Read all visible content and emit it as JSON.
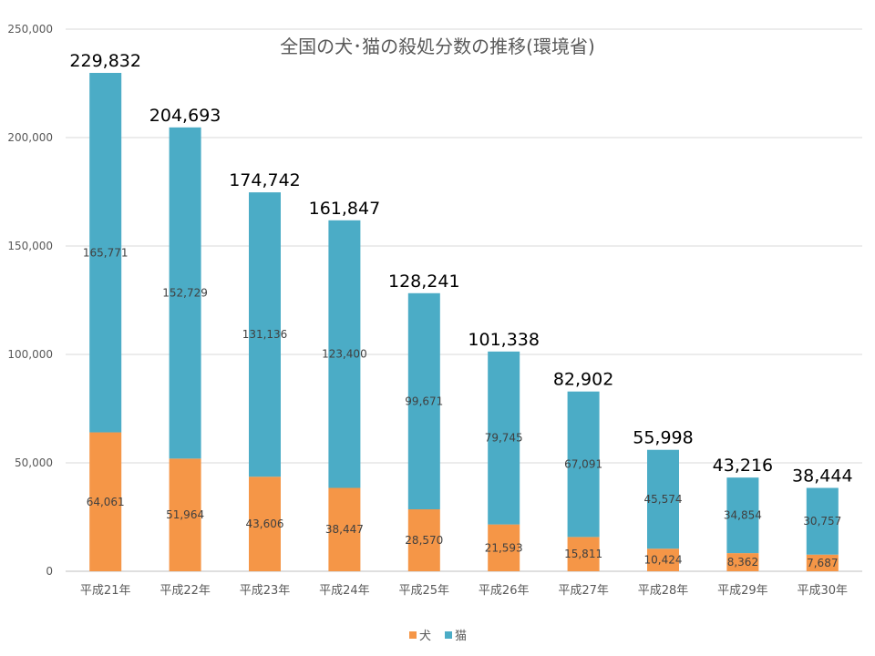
{
  "chart_data": {
    "type": "bar",
    "stacked": true,
    "title": "全国の犬･猫の殺処分数の推移(環境省)",
    "categories": [
      "平成21年",
      "平成22年",
      "平成23年",
      "平成24年",
      "平成25年",
      "平成26年",
      "平成27年",
      "平成28年",
      "平成29年",
      "平成30年"
    ],
    "series": [
      {
        "name": "犬",
        "color": "#f59647",
        "values": [
          64061,
          51964,
          43606,
          38447,
          28570,
          21593,
          15811,
          10424,
          8362,
          7687
        ],
        "labels": [
          "64,061",
          "51,964",
          "43,606",
          "38,447",
          "28,570",
          "21,593",
          "15,811",
          "10,424",
          "8,362",
          "7,687"
        ]
      },
      {
        "name": "猫",
        "color": "#4bacc6",
        "values": [
          165771,
          152729,
          131136,
          123400,
          99671,
          79745,
          67091,
          45574,
          34854,
          30757
        ],
        "labels": [
          "165,771",
          "152,729",
          "131,136",
          "123,400",
          "99,671",
          "79,745",
          "67,091",
          "45,574",
          "34,854",
          "30,757"
        ]
      }
    ],
    "totals": [
      229832,
      204693,
      174742,
      161847,
      128241,
      101338,
      82902,
      55998,
      43216,
      38444
    ],
    "total_labels": [
      "229,832",
      "204,693",
      "174,742",
      "161,847",
      "128,241",
      "101,338",
      "82,902",
      "55,998",
      "43,216",
      "38,444"
    ],
    "ylim": [
      0,
      250000
    ],
    "yticks": [
      0,
      50000,
      100000,
      150000,
      200000,
      250000
    ],
    "ytick_labels": [
      "0",
      "50,000",
      "100,000",
      "150,000",
      "200,000",
      "250,000"
    ],
    "grid": true,
    "legend": {
      "position": "bottom",
      "entries": [
        "犬",
        "猫"
      ]
    }
  }
}
